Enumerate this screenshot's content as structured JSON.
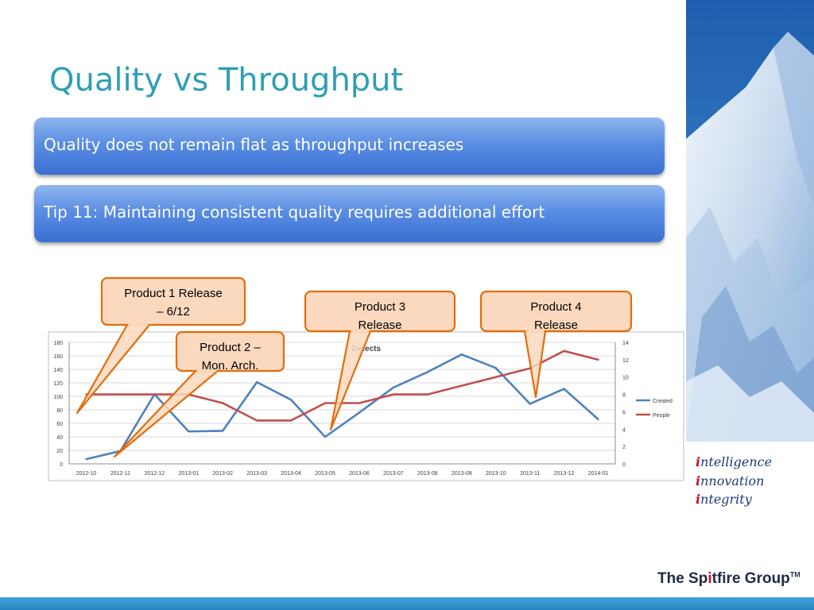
{
  "slide": {
    "title": "Quality vs Throughput",
    "banner1": "Quality does not remain flat as throughput increases",
    "banner2": "Tip 11: Maintaining consistent quality requires additional effort"
  },
  "tagline": {
    "line1_first": "i",
    "line1_rest": "ntelligence",
    "line2_first": "i",
    "line2_rest": "nnovation",
    "line3_first": "i",
    "line3_rest": "ntegrity"
  },
  "logo": {
    "pre": "The Sp",
    "mid": "i",
    "post": "tfire Group",
    "tm": "TM"
  },
  "colors": {
    "created": "#4f81bd",
    "people": "#c0504d",
    "callout_fill": "#fbd9bf",
    "callout_border": "#e46c0a",
    "title": "#2f9fb2"
  },
  "callouts": [
    {
      "id": "p1",
      "text": [
        "Product 1 Release",
        "– 6/12"
      ]
    },
    {
      "id": "p2",
      "text": [
        "Product 2 –",
        "Mon. Arch."
      ]
    },
    {
      "id": "p3",
      "text": [
        "Product 3",
        "Release"
      ]
    },
    {
      "id": "p4",
      "text": [
        "Product 4",
        "Release"
      ]
    }
  ],
  "chart_data": {
    "type": "line",
    "title": "Defects",
    "categories": [
      "2012-10",
      "2012-11",
      "2012-12",
      "2013-01",
      "2013-02",
      "2013-03",
      "2013-04",
      "2013-05",
      "2013-06",
      "2013-07",
      "2013-08",
      "2013-09",
      "2013-10",
      "2013-11",
      "2013-12",
      "2014-01"
    ],
    "series": [
      {
        "name": "Created",
        "axis": "left",
        "values": [
          7,
          19,
          103,
          48,
          49,
          121,
          95,
          40,
          76,
          113,
          136,
          162,
          142,
          89,
          111,
          66
        ]
      },
      {
        "name": "People",
        "axis": "right",
        "values": [
          8,
          8,
          8,
          8,
          7,
          5,
          5,
          7,
          7,
          8,
          8,
          9,
          10,
          11,
          13,
          12
        ]
      }
    ],
    "ylim_left": [
      0,
      180
    ],
    "yticks_left": [
      0,
      20,
      40,
      60,
      80,
      100,
      120,
      140,
      160,
      180
    ],
    "ylim_right": [
      0,
      14
    ],
    "yticks_right": [
      0,
      2,
      4,
      6,
      8,
      10,
      12,
      14
    ],
    "grid": true,
    "legend": "right"
  }
}
